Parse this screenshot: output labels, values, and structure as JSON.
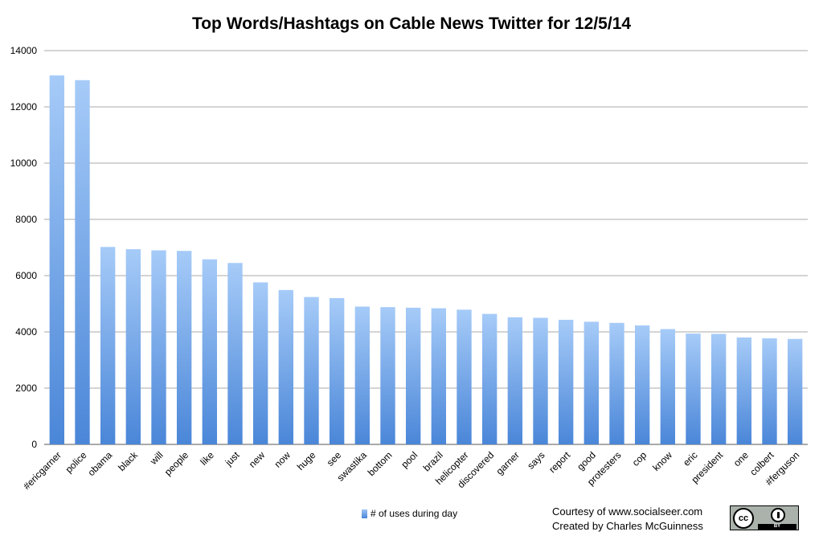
{
  "chart_data": {
    "type": "bar",
    "title": "Top Words/Hashtags on Cable News Twitter for 12/5/14",
    "xlabel": "",
    "ylabel": "",
    "ylim": [
      0,
      14000
    ],
    "yticks": [
      "0",
      "2000",
      "4000",
      "6000",
      "8000",
      "10000",
      "12000",
      "14000"
    ],
    "grid": true,
    "legend_position": "bottom",
    "categories": [
      "#ericgarner",
      "police",
      "obama",
      "black",
      "will",
      "people",
      "like",
      "just",
      "new",
      "now",
      "huge",
      "see",
      "swastika",
      "bottom",
      "pool",
      "brazil",
      "helicopter",
      "discovered",
      "garner",
      "says",
      "report",
      "good",
      "protesters",
      "cop",
      "know",
      "eric",
      "president",
      "one",
      "colbert",
      "#ferguson"
    ],
    "series": [
      {
        "name": "# of uses during day",
        "values": [
          13120,
          12950,
          7020,
          6940,
          6900,
          6880,
          6580,
          6450,
          5760,
          5490,
          5240,
          5200,
          4900,
          4880,
          4860,
          4840,
          4790,
          4640,
          4520,
          4500,
          4430,
          4360,
          4320,
          4230,
          4100,
          3940,
          3930,
          3800,
          3770,
          3750
        ],
        "color_top": "#a6cbf8",
        "color_bottom": "#4a86d8"
      }
    ]
  },
  "credits": {
    "line1": "Courtesy of www.socialseer.com",
    "line2": "Created by Charles McGuinness"
  },
  "license_badge": {
    "icon": "creative-commons-by-icon",
    "cc_label": "cc",
    "by_label": "BY"
  }
}
